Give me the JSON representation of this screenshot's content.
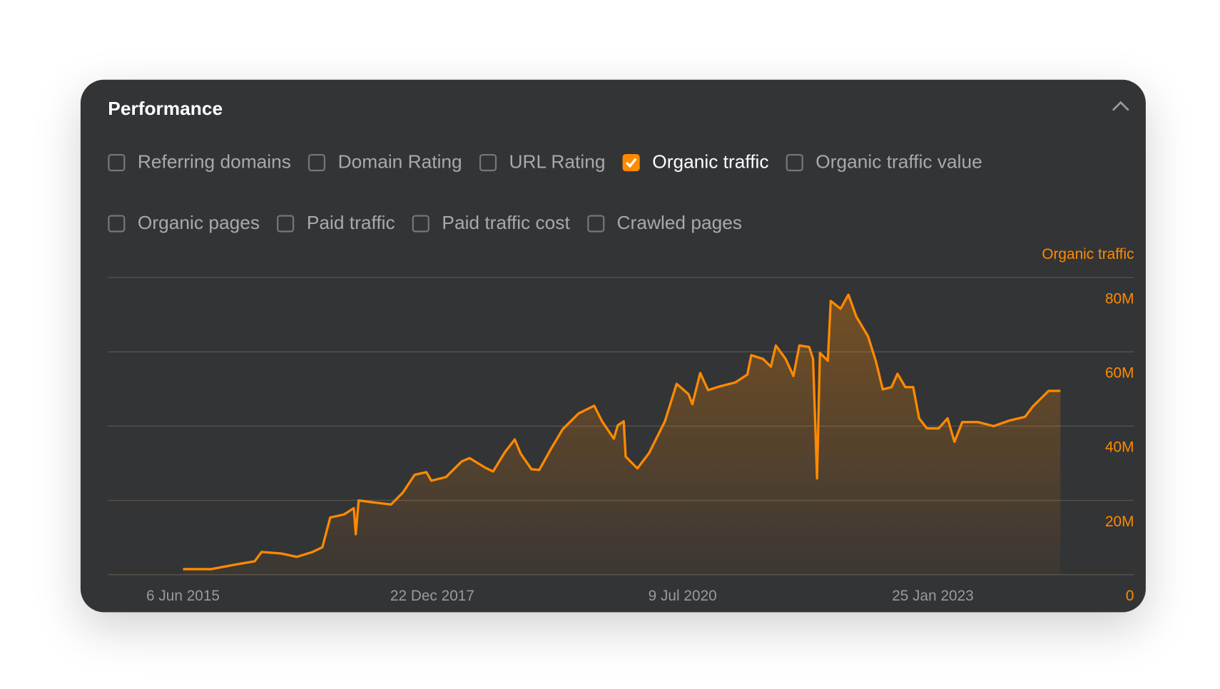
{
  "panel": {
    "title": "Performance",
    "options": [
      {
        "label": "Referring domains",
        "checked": false
      },
      {
        "label": "Domain Rating",
        "checked": false
      },
      {
        "label": "URL Rating",
        "checked": false
      },
      {
        "label": "Organic traffic",
        "checked": true
      },
      {
        "label": "Organic traffic value",
        "checked": false
      },
      {
        "label": "Organic pages",
        "checked": false
      },
      {
        "label": "Paid traffic",
        "checked": false
      },
      {
        "label": "Paid traffic cost",
        "checked": false
      },
      {
        "label": "Crawled pages",
        "checked": false
      }
    ]
  },
  "chart_data": {
    "type": "area",
    "ylabel": "Organic traffic",
    "color": "#ff8a00",
    "grid": true,
    "x": [
      2015.43,
      2015.72,
      2015.96,
      2016.16,
      2016.23,
      2016.43,
      2016.59,
      2016.75,
      2016.85,
      2016.93,
      2017.07,
      2017.17,
      2017.19,
      2017.22,
      2017.39,
      2017.55,
      2017.67,
      2017.79,
      2017.91,
      2017.96,
      2018.11,
      2018.27,
      2018.35,
      2018.51,
      2018.59,
      2018.71,
      2018.81,
      2018.87,
      2018.98,
      2019.06,
      2019.18,
      2019.3,
      2019.46,
      2019.62,
      2019.7,
      2019.82,
      2019.86,
      2019.92,
      2019.94,
      2020.06,
      2020.18,
      2020.34,
      2020.46,
      2020.58,
      2020.62,
      2020.7,
      2020.78,
      2020.9,
      2021.06,
      2021.18,
      2021.22,
      2021.34,
      2021.42,
      2021.47,
      2021.57,
      2021.65,
      2021.71,
      2021.81,
      2021.85,
      2021.89,
      2021.92,
      2022.0,
      2022.03,
      2022.13,
      2022.21,
      2022.29,
      2022.41,
      2022.49,
      2022.56,
      2022.65,
      2022.71,
      2022.79,
      2022.87,
      2022.93,
      2023.01,
      2023.13,
      2023.22,
      2023.29,
      2023.37,
      2023.53,
      2023.69,
      2023.85,
      2024.01,
      2024.09,
      2024.25,
      2024.37
    ],
    "values": [
      1.5,
      1.5,
      2.7,
      3.6,
      6.1,
      5.7,
      4.8,
      6.1,
      7.4,
      15.4,
      16.2,
      17.9,
      10.9,
      20.0,
      19.4,
      18.9,
      22.1,
      26.9,
      27.6,
      25.3,
      26.3,
      30.5,
      31.4,
      28.8,
      27.8,
      33.0,
      36.4,
      32.6,
      28.4,
      28.2,
      33.9,
      39.2,
      43.4,
      45.5,
      41.3,
      36.6,
      40.2,
      41.3,
      31.8,
      28.6,
      32.8,
      41.3,
      51.4,
      48.6,
      45.9,
      54.3,
      49.7,
      50.7,
      51.8,
      53.9,
      59.1,
      58.1,
      56.0,
      61.7,
      58.1,
      53.5,
      61.7,
      61.3,
      58.1,
      25.9,
      59.7,
      57.6,
      73.7,
      71.6,
      75.4,
      69.5,
      64.2,
      57.4,
      49.9,
      50.5,
      54.1,
      50.5,
      50.5,
      42.1,
      39.4,
      39.4,
      42.1,
      35.8,
      41.1,
      41.1,
      40.0,
      41.5,
      42.5,
      45.3,
      49.5,
      49.5
    ],
    "xlim": [
      2014.665,
      2025.12
    ],
    "xticks": [
      {
        "value": 2015.43,
        "label": "6 Jun 2015"
      },
      {
        "value": 2017.97,
        "label": "22 Dec 2017"
      },
      {
        "value": 2020.52,
        "label": "9 Jul 2020"
      },
      {
        "value": 2023.07,
        "label": "25 Jan 2023"
      }
    ],
    "ylim": [
      0,
      80
    ],
    "yticks": [
      0,
      {
        "value": 20,
        "label": "20M"
      },
      {
        "value": 40,
        "label": "40M"
      },
      {
        "value": 60,
        "label": "60M"
      },
      {
        "value": 80,
        "label": "80M"
      }
    ]
  }
}
